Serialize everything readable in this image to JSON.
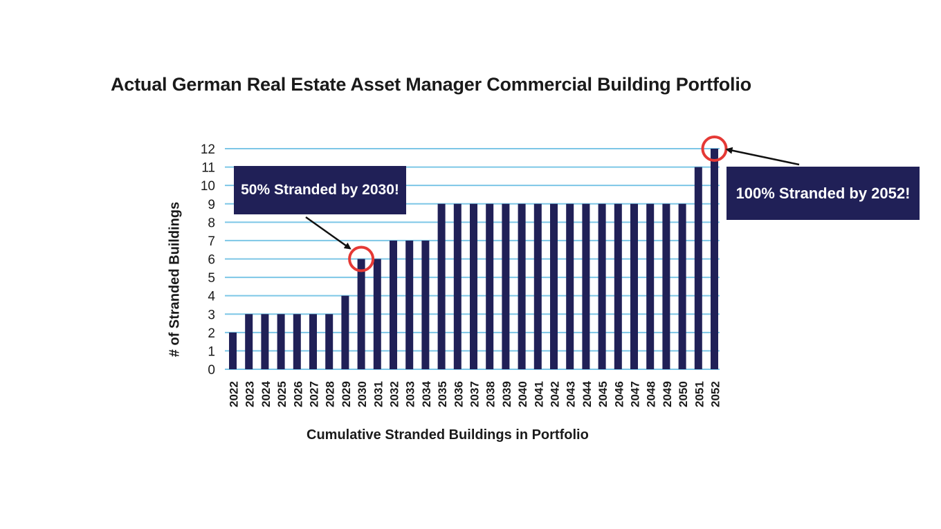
{
  "title": "Actual German Real Estate Asset Manager Commercial Building Portfolio",
  "callouts": {
    "left": "50% Stranded by 2030!",
    "right": "100% Stranded by 2052!"
  },
  "colors": {
    "bar": "#202057",
    "grid": "#7cc6e6",
    "highlight_circle": "#e53935",
    "callout_bg": "#202057"
  },
  "chart_data": {
    "type": "bar",
    "title": "Actual German Real Estate Asset Manager Commercial Building Portfolio",
    "xlabel": "Cumulative Stranded Buildings in Portfolio",
    "ylabel": "# of Stranded Buildings",
    "ylim": [
      0,
      12
    ],
    "yticks": [
      0,
      1,
      2,
      3,
      4,
      5,
      6,
      7,
      8,
      9,
      10,
      11,
      12
    ],
    "grid": true,
    "categories": [
      "2022",
      "2023",
      "2024",
      "2025",
      "2026",
      "2027",
      "2028",
      "2029",
      "2030",
      "2031",
      "2032",
      "2033",
      "2034",
      "2035",
      "2036",
      "2037",
      "2038",
      "2039",
      "2040",
      "2041",
      "2042",
      "2043",
      "2044",
      "2045",
      "2046",
      "2047",
      "2048",
      "2049",
      "2050",
      "2051",
      "2052"
    ],
    "values": [
      2,
      3,
      3,
      3,
      3,
      3,
      3,
      4,
      6,
      6,
      7,
      7,
      7,
      9,
      9,
      9,
      9,
      9,
      9,
      9,
      9,
      9,
      9,
      9,
      9,
      9,
      9,
      9,
      9,
      11,
      12
    ],
    "highlighted": [
      "2030",
      "2052"
    ]
  }
}
